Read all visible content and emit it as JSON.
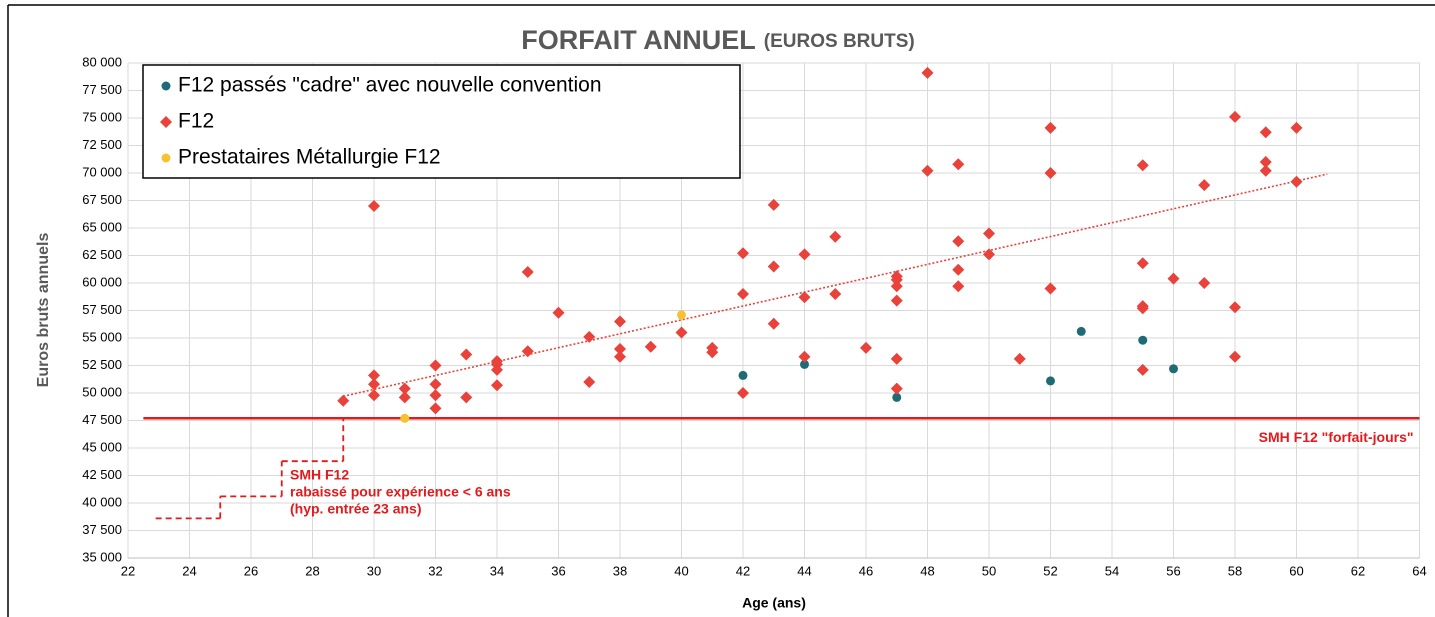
{
  "chart_data": {
    "type": "scatter",
    "title": "FORFAIT ANNUEL",
    "subtitle": "(EUROS BRUTS)",
    "x_label": "Age (ans)",
    "y_label": "Euros bruts annuels",
    "xlim": [
      22,
      64
    ],
    "xticks": [
      22,
      24,
      26,
      28,
      30,
      32,
      34,
      36,
      38,
      40,
      42,
      44,
      46,
      48,
      50,
      52,
      54,
      56,
      58,
      60,
      62,
      64
    ],
    "ylim": [
      35000,
      80000
    ],
    "yticks": [
      {
        "value": 35000,
        "label": "35 000"
      },
      {
        "value": 37500,
        "label": "37 500"
      },
      {
        "value": 40000,
        "label": "40 000"
      },
      {
        "value": 42500,
        "label": "42 500"
      },
      {
        "value": 45000,
        "label": "45 000"
      },
      {
        "value": 47500,
        "label": "47 500"
      },
      {
        "value": 50000,
        "label": "50 000"
      },
      {
        "value": 52500,
        "label": "52 500"
      },
      {
        "value": 55000,
        "label": "55 000"
      },
      {
        "value": 57500,
        "label": "57 500"
      },
      {
        "value": 60000,
        "label": "60 000"
      },
      {
        "value": 62500,
        "label": "62 500"
      },
      {
        "value": 65000,
        "label": "65 000"
      },
      {
        "value": 67500,
        "label": "67 500"
      },
      {
        "value": 70000,
        "label": "70 000"
      },
      {
        "value": 72500,
        "label": "72 500"
      },
      {
        "value": 75000,
        "label": "75 000"
      },
      {
        "value": 77500,
        "label": "77 500"
      },
      {
        "value": 80000,
        "label": "80 000"
      }
    ],
    "grid": true,
    "legend": "top-left",
    "series": [
      {
        "name": "F12 passés \"cadre\" avec nouvelle convention",
        "color": "#1f6b75",
        "marker": "circle",
        "x": [
          42,
          44,
          47,
          52,
          53,
          55,
          56
        ],
        "values": [
          51600,
          52600,
          49600,
          51100,
          55600,
          54800,
          52200
        ]
      },
      {
        "name": "F12",
        "color": "#e8423a",
        "marker": "diamond",
        "x": [
          29,
          30,
          30,
          30,
          30,
          31,
          31,
          32,
          32,
          32,
          32,
          33,
          33,
          34,
          34,
          34,
          34,
          35,
          35,
          36,
          37,
          37,
          38,
          38,
          38,
          39,
          40,
          41,
          41,
          42,
          42,
          42,
          43,
          43,
          43,
          44,
          44,
          44,
          45,
          45,
          46,
          47,
          47,
          47,
          47,
          47,
          47,
          48,
          48,
          49,
          49,
          49,
          49,
          50,
          50,
          51,
          52,
          52,
          52,
          55,
          55,
          55,
          55,
          55,
          56,
          57,
          57,
          58,
          58,
          58,
          59,
          59,
          59,
          60,
          60
        ],
        "values": [
          49300,
          67000,
          51600,
          50800,
          49800,
          50400,
          49600,
          52500,
          50800,
          49800,
          48600,
          53500,
          49600,
          52900,
          52600,
          52100,
          50700,
          61000,
          53800,
          57300,
          55100,
          51000,
          56500,
          54000,
          53300,
          54200,
          55500,
          54100,
          53700,
          62700,
          59000,
          50000,
          67100,
          61500,
          56300,
          62600,
          58700,
          53300,
          64200,
          59000,
          54100,
          60600,
          60300,
          59700,
          58400,
          53100,
          50400,
          79100,
          70200,
          70800,
          63800,
          61200,
          59700,
          64500,
          62600,
          53100,
          74100,
          70000,
          59500,
          70700,
          61800,
          57900,
          57700,
          52100,
          60400,
          68900,
          60000,
          75100,
          57800,
          53300,
          73700,
          71000,
          70200,
          74100,
          69200
        ]
      },
      {
        "name": "Prestataires Métallurgie F12",
        "color": "#f7c230",
        "marker": "circle",
        "x": [
          31,
          40
        ],
        "values": [
          47700,
          57100
        ]
      }
    ],
    "trendline": {
      "color": "#e8423a",
      "x": [
        29,
        61
      ],
      "values": [
        49700,
        69900
      ]
    },
    "smh_line": {
      "label": "SMH F12 \"forfait-jours\"",
      "color": "#e31a1c",
      "value": 47700
    },
    "smh_steps": {
      "color": "#e31a1c",
      "steps": [
        {
          "from": 22.9,
          "to": 25,
          "value": 38600
        },
        {
          "from": 25,
          "to": 27,
          "value": 40600
        },
        {
          "from": 27,
          "to": 29,
          "value": 43800
        }
      ],
      "label": [
        "SMH F12",
        "rabaissé pour expérience < 6 ans",
        "(hyp. entrée 23 ans)"
      ]
    }
  }
}
